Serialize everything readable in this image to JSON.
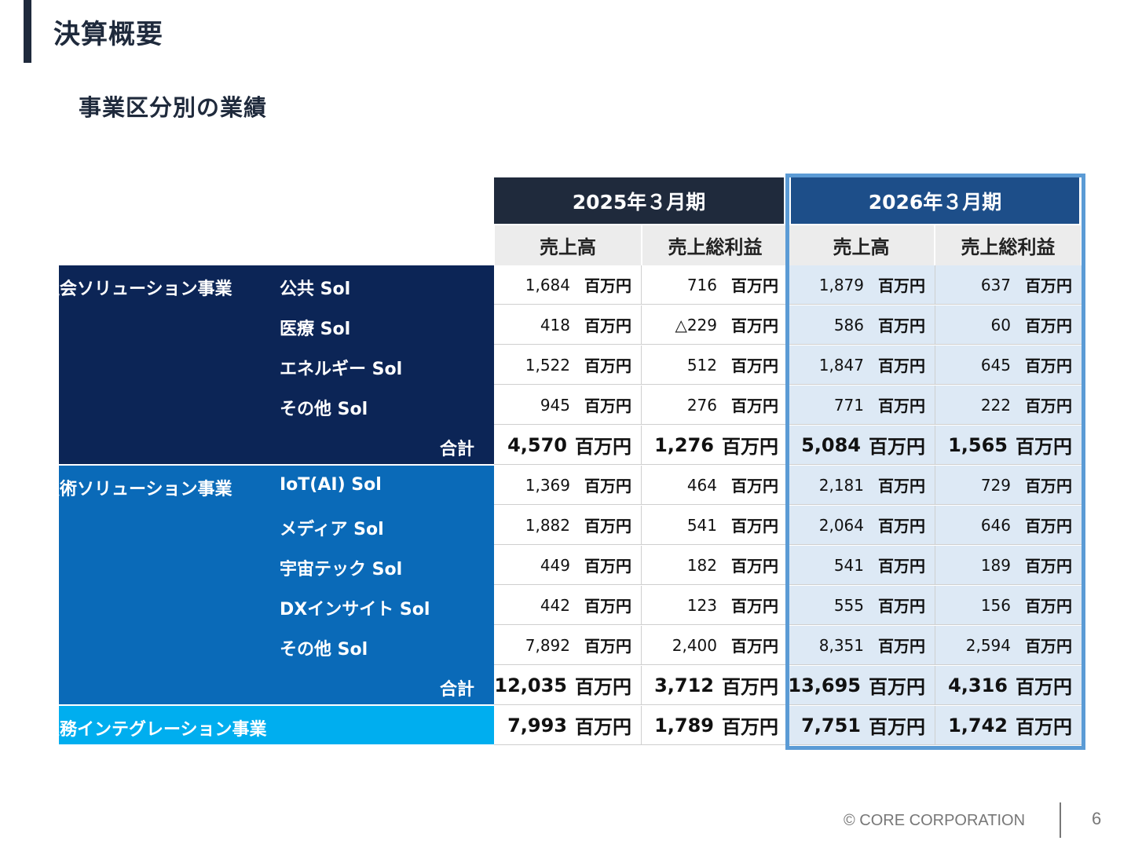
{
  "page": {
    "title": "決算概要",
    "subtitle": "事業区分別の業績",
    "footer_copyright": "© CORE CORPORATION",
    "page_number": "6"
  },
  "table": {
    "years": [
      {
        "label": "2025年３月期",
        "color": "#1f2a3c"
      },
      {
        "label": "2026年３月期",
        "color": "#1d4e89"
      }
    ],
    "sub_headers": [
      "売上高",
      "売上総利益",
      "売上高",
      "売上総利益"
    ],
    "unit": "百万円",
    "segments": [
      {
        "name": "未来社会ソリューション事業",
        "color": "#0c2556",
        "rows": [
          {
            "label": "公共 Sol",
            "values": [
              "1,684",
              "716",
              "1,879",
              "637"
            ]
          },
          {
            "label": "医療 Sol",
            "values": [
              "418",
              "△229",
              "586",
              "60"
            ]
          },
          {
            "label": "エネルギー Sol",
            "values": [
              "1,522",
              "512",
              "1,847",
              "645"
            ]
          },
          {
            "label": "その他 Sol",
            "values": [
              "945",
              "276",
              "771",
              "222"
            ]
          }
        ],
        "total_label": "合計",
        "total": [
          "4,570",
          "1,276",
          "5,084",
          "1,565"
        ]
      },
      {
        "name": "産業技術ソリューション事業",
        "color": "#0a6ab8",
        "rows": [
          {
            "label": "IoT(AI) Sol",
            "values": [
              "1,369",
              "464",
              "2,181",
              "729"
            ]
          },
          {
            "label": "メディア Sol",
            "values": [
              "1,882",
              "541",
              "2,064",
              "646"
            ]
          },
          {
            "label": "宇宙テック Sol",
            "values": [
              "449",
              "182",
              "541",
              "189"
            ]
          },
          {
            "label": "DXインサイト Sol",
            "values": [
              "442",
              "123",
              "555",
              "156"
            ]
          },
          {
            "label": "その他 Sol",
            "values": [
              "7,892",
              "2,400",
              "8,351",
              "2,594"
            ]
          }
        ],
        "total_label": "合計",
        "total": [
          "12,035",
          "3,712",
          "13,695",
          "4,316"
        ]
      },
      {
        "name": "顧客業務インテグレーション事業",
        "color": "#00aeef",
        "rows": [],
        "total_label": "",
        "total": [
          "7,993",
          "1,789",
          "7,751",
          "1,742"
        ]
      }
    ]
  }
}
